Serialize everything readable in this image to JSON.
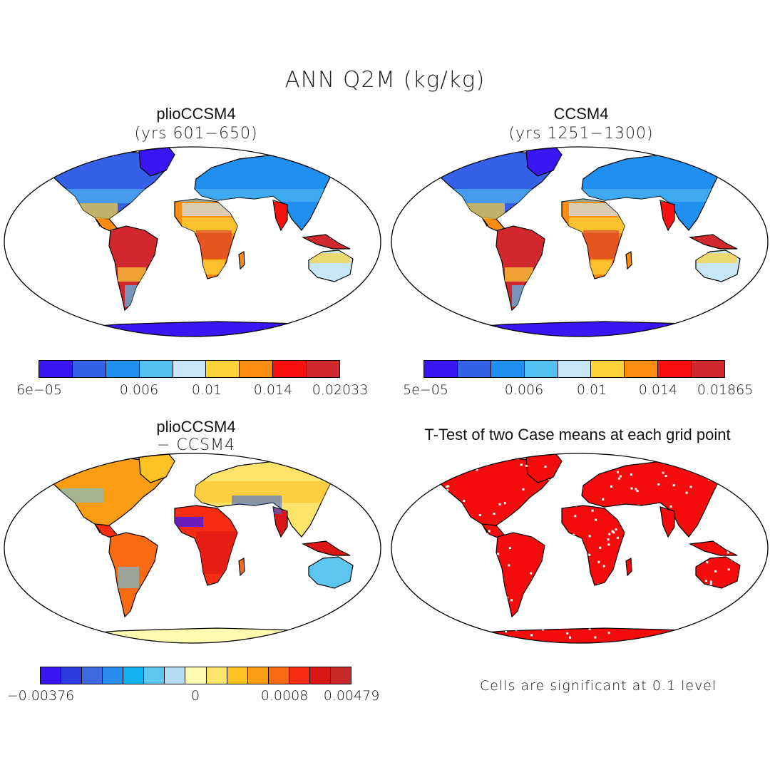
{
  "title": "ANN Q2M (kg/kg)",
  "panels": [
    {
      "title": "plioCCSM4",
      "subtitle": "(yrs 601−650)",
      "colorbar": {
        "colors": [
          "#3a17f2",
          "#3561e8",
          "#1f8ff0",
          "#53c0f2",
          "#c9e7f6",
          "#fcd43a",
          "#fb8c0f",
          "#fb1010",
          "#d1282e"
        ],
        "labels": [
          "6e−05",
          "0.006",
          "0.01",
          "0.014",
          "0.02033"
        ]
      }
    },
    {
      "title": "CCSM4",
      "subtitle": "(yrs 1251−1300)",
      "colorbar": {
        "colors": [
          "#3a17f2",
          "#3561e8",
          "#1f8ff0",
          "#53c0f2",
          "#c9e7f6",
          "#fcd43a",
          "#fb8c0f",
          "#fb1010",
          "#d1282e"
        ],
        "labels": [
          "5e−05",
          "0.006",
          "0.01",
          "0.014",
          "0.01865"
        ]
      }
    },
    {
      "title": "plioCCSM4",
      "subtitle": "− CCSM4",
      "colorbar": {
        "colors": [
          "#3a17f2",
          "#2c3ee0",
          "#3e6ae0",
          "#2a8ef0",
          "#15b2f2",
          "#5cc6f0",
          "#b4dcf4",
          "#fefab0",
          "#fde36a",
          "#fcc224",
          "#fb9d12",
          "#f96b12",
          "#f72c12",
          "#db1616",
          "#c82a2a"
        ],
        "labels": [
          "−0.00376",
          "0",
          "0.0008",
          "0.00479"
        ]
      }
    },
    {
      "title": "T-Test of two Case means at each grid point",
      "note": "Cells are significant at 0.1 level"
    }
  ]
}
